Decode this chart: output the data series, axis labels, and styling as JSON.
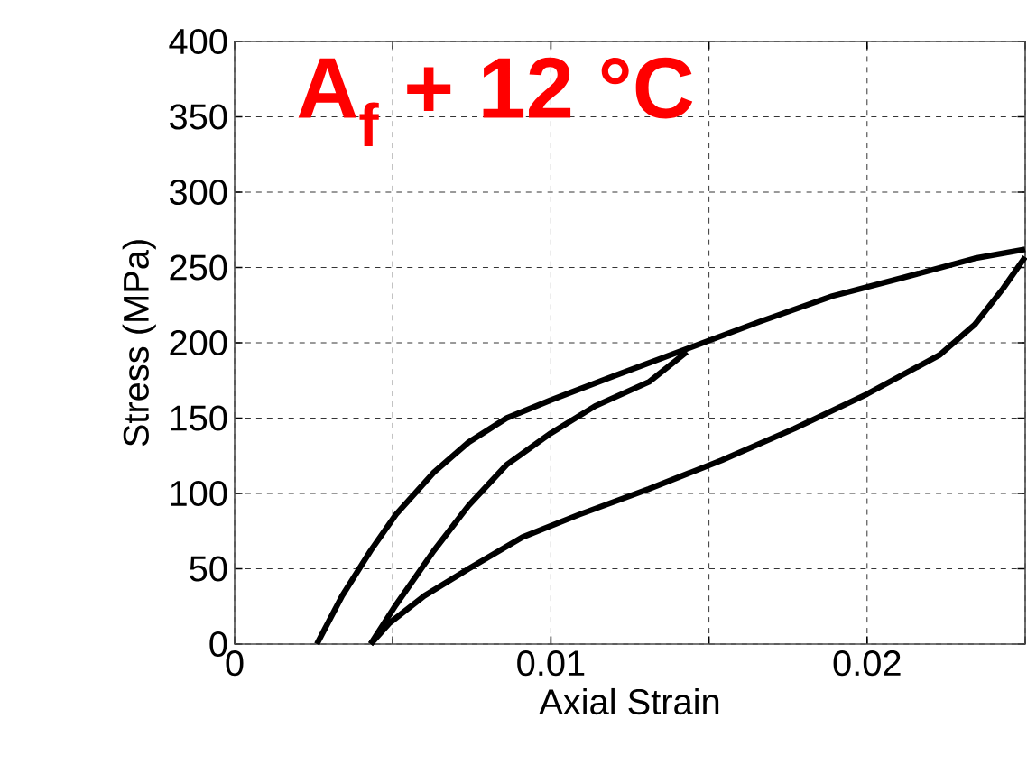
{
  "chart_data": {
    "type": "line",
    "xlabel": "Axial Strain",
    "ylabel": "Stress (MPa)",
    "annotations": [
      "A$_{f}$ + 12 °C"
    ],
    "xlim": [
      0,
      0.025
    ],
    "ylim": [
      0,
      400
    ],
    "xticks": [
      0,
      {
        "value": 0.005,
        "label": null
      },
      0.01,
      {
        "value": 0.015,
        "label": null
      },
      0.02,
      {
        "value": 0.025,
        "label": null
      }
    ],
    "yticks": [
      0,
      50,
      100,
      150,
      200,
      250,
      300,
      350,
      400
    ],
    "grid": true,
    "marker": "none",
    "line_style": "solid",
    "series": [
      {
        "color": "#000000",
        "x": [
          0.0026,
          0.0034,
          0.0043,
          0.0051,
          0.0063,
          0.0074,
          0.0086,
          0.01,
          0.012,
          0.0143,
          0.0166,
          0.0189,
          0.0211,
          0.0234,
          0.025
        ],
        "values": [
          0,
          32,
          62,
          86,
          114,
          134,
          150,
          162,
          178,
          196,
          214,
          231,
          243,
          256,
          262
        ]
      },
      {
        "color": "#000000",
        "x": [
          0.025,
          0.0243,
          0.0234,
          0.0223,
          0.02,
          0.0177,
          0.0154,
          0.0131,
          0.0109,
          0.0091,
          0.0074,
          0.006,
          0.0049,
          0.0043
        ],
        "values": [
          257,
          236,
          212,
          192,
          166,
          143,
          122,
          103,
          86,
          71,
          50,
          32,
          14,
          0
        ]
      },
      {
        "color": "#000000",
        "x": [
          0.0043,
          0.0051,
          0.0063,
          0.0074,
          0.0086,
          0.01,
          0.0114,
          0.0131,
          0.0143
        ],
        "values": [
          0,
          26,
          62,
          92,
          119,
          140,
          158,
          174,
          194
        ]
      }
    ]
  }
}
